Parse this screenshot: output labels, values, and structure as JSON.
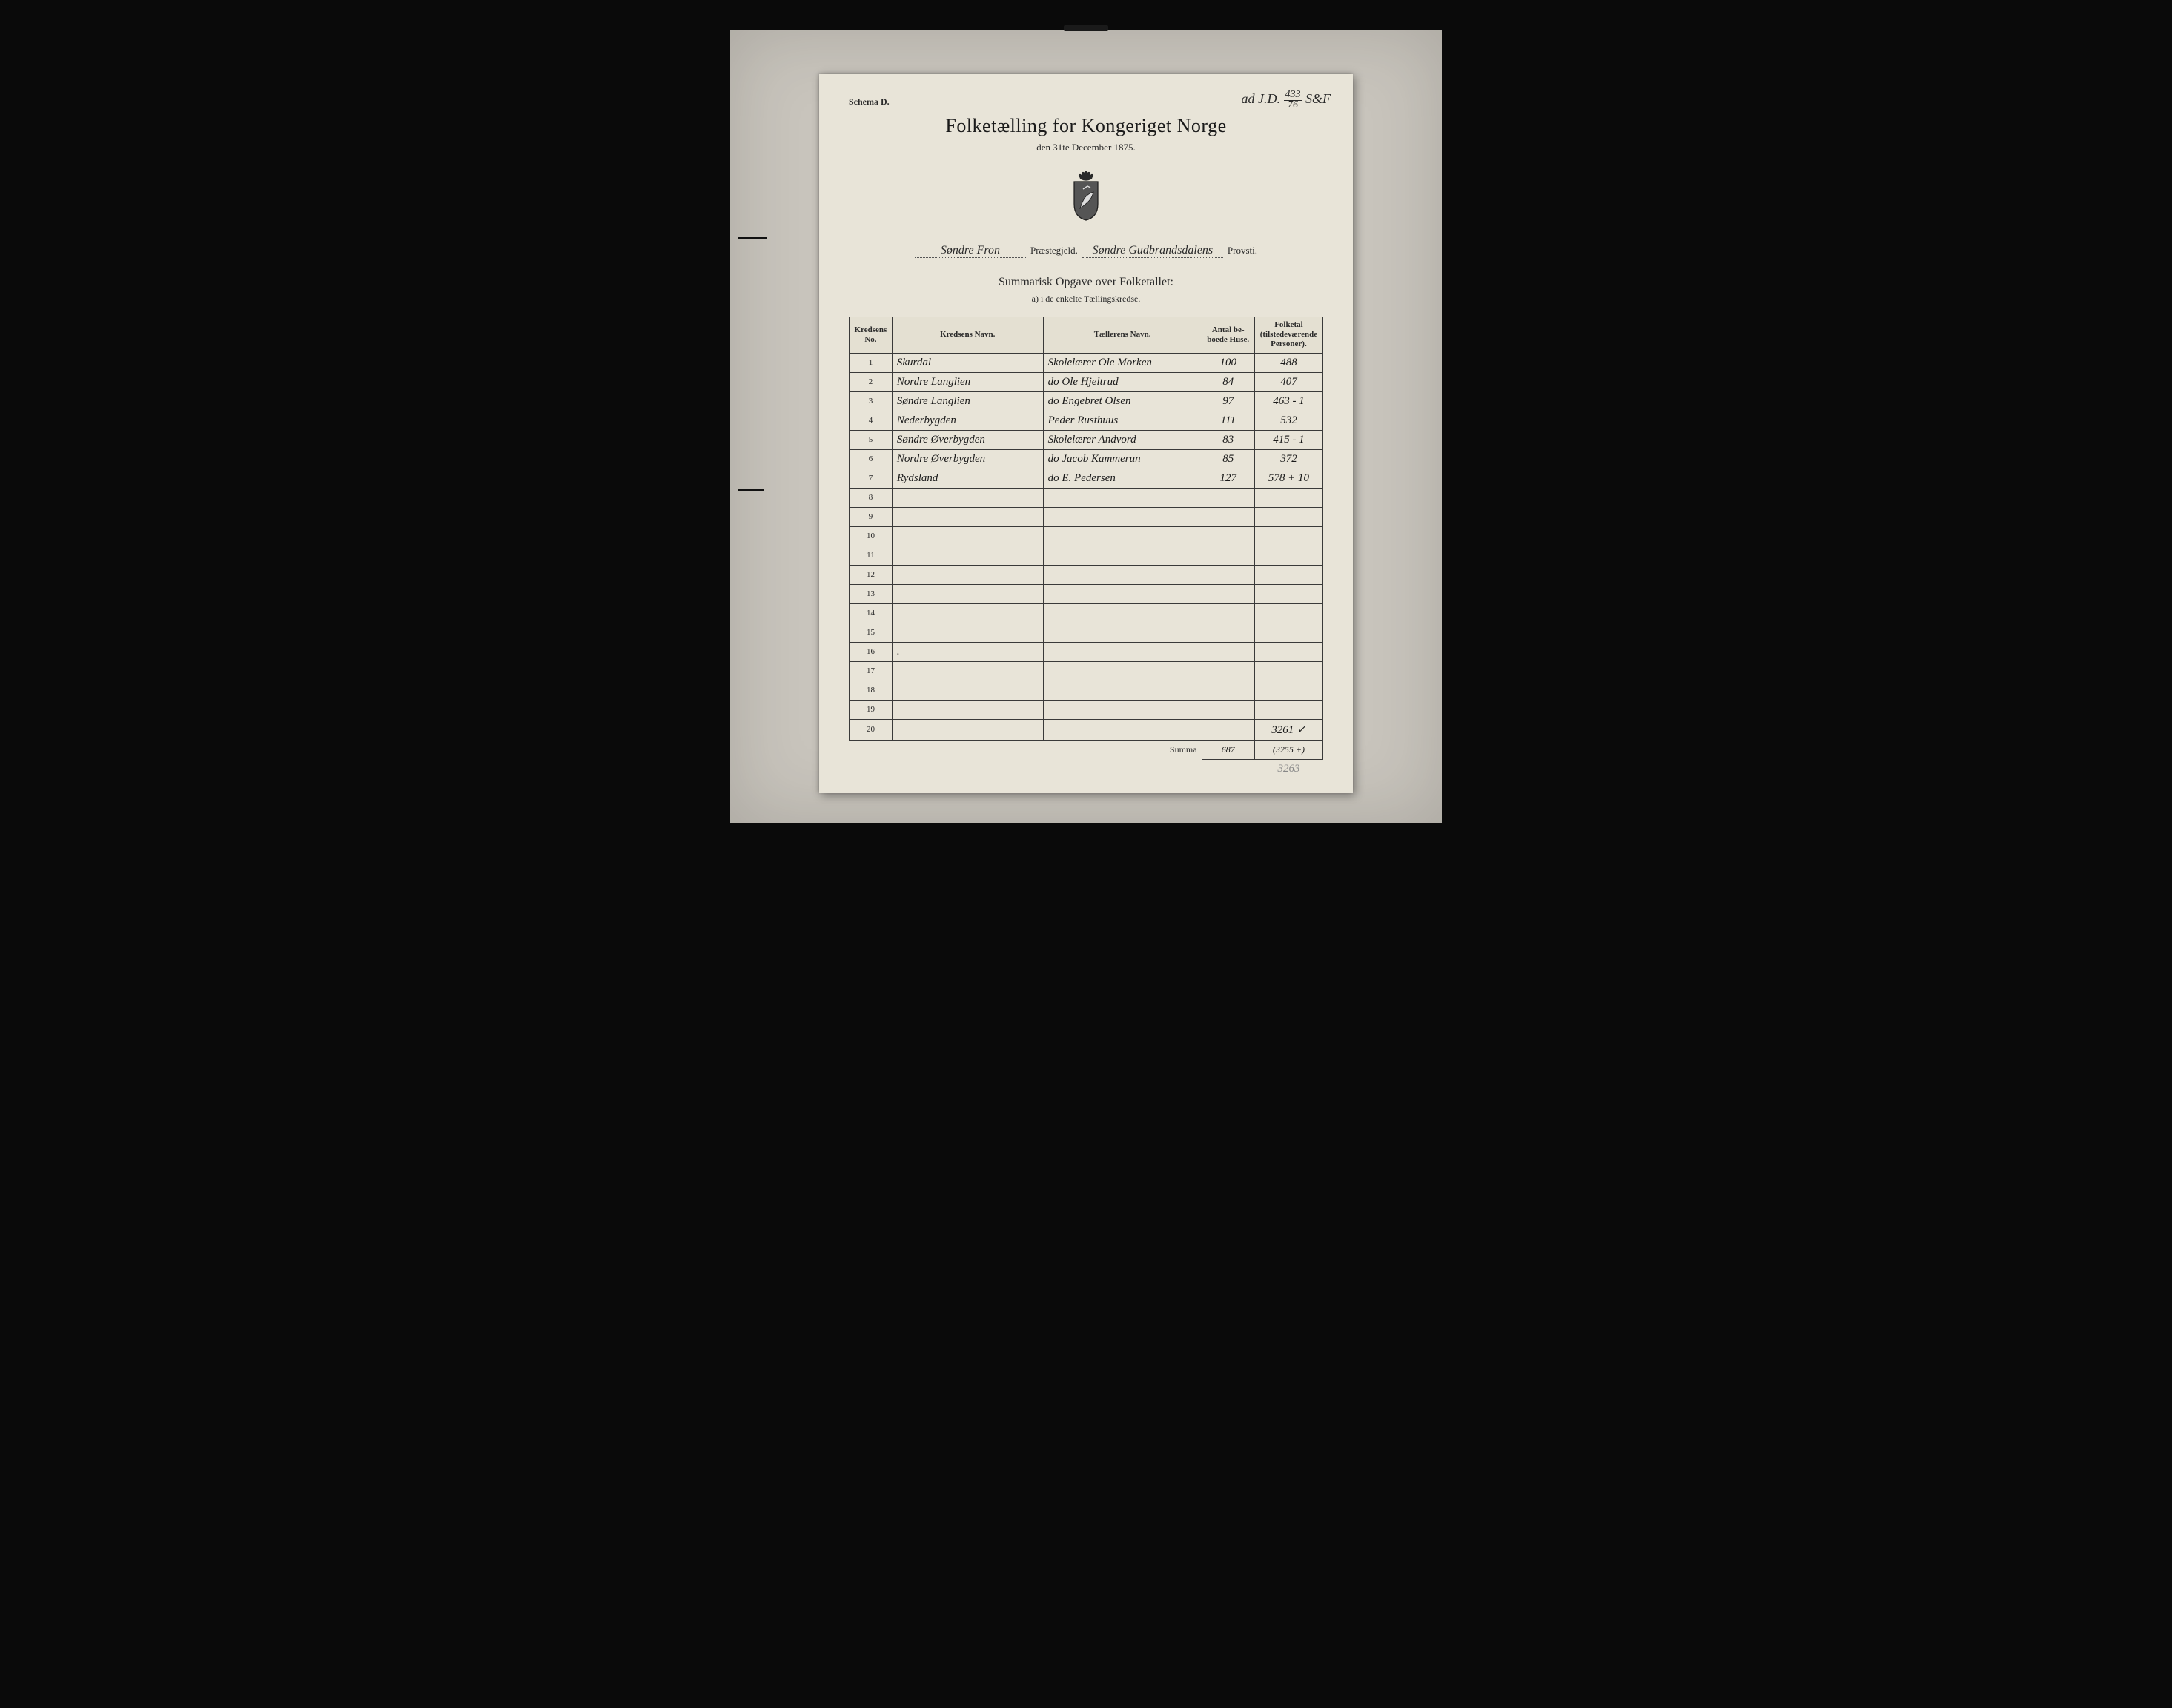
{
  "meta": {
    "schema_label": "Schema D.",
    "top_annotation_prefix": "ad J.D.",
    "top_annotation_num": "433",
    "top_annotation_den": "76",
    "top_annotation_suffix": "S&F"
  },
  "header": {
    "main_title": "Folketælling for Kongeriget Norge",
    "subtitle": "den 31te December 1875."
  },
  "locality": {
    "parish_value": "Søndre Fron",
    "parish_label": "Præstegjeld.",
    "deanery_value": "Søndre Gudbrandsdalens",
    "deanery_label": "Provsti."
  },
  "summary": {
    "title": "Summarisk Opgave over Folketallet:",
    "sub": "a) i de enkelte Tællingskredse."
  },
  "table": {
    "headers": {
      "num": "Kredsens\nNo.",
      "name": "Kredsens Navn.",
      "enumerator": "Tællerens Navn.",
      "houses": "Antal be-\nboede Huse.",
      "population": "Folketal\n(tilstedeværende\nPersoner)."
    },
    "rows": [
      {
        "no": "1",
        "name": "Skurdal",
        "enumerator": "Skolelærer Ole Morken",
        "houses": "100",
        "pop": "488"
      },
      {
        "no": "2",
        "name": "Nordre Langlien",
        "enumerator": "do   Ole Hjeltrud",
        "houses": "84",
        "pop": "407"
      },
      {
        "no": "3",
        "name": "Søndre Langlien",
        "enumerator": "do   Engebret Olsen",
        "houses": "97",
        "pop": "463 - 1"
      },
      {
        "no": "4",
        "name": "Nederbygden",
        "enumerator": "Peder Rusthuus",
        "houses": "111",
        "pop": "532"
      },
      {
        "no": "5",
        "name": "Søndre Øverbygden",
        "enumerator": "Skolelærer Andvord",
        "houses": "83",
        "pop": "415 - 1"
      },
      {
        "no": "6",
        "name": "Nordre Øverbygden",
        "enumerator": "do   Jacob Kammerun",
        "houses": "85",
        "pop": "372"
      },
      {
        "no": "7",
        "name": "Rydsland",
        "enumerator": "do   E. Pedersen",
        "houses": "127",
        "pop": "578 + 10"
      },
      {
        "no": "8",
        "name": "",
        "enumerator": "",
        "houses": "",
        "pop": ""
      },
      {
        "no": "9",
        "name": "",
        "enumerator": "",
        "houses": "",
        "pop": ""
      },
      {
        "no": "10",
        "name": "",
        "enumerator": "",
        "houses": "",
        "pop": ""
      },
      {
        "no": "11",
        "name": "",
        "enumerator": "",
        "houses": "",
        "pop": ""
      },
      {
        "no": "12",
        "name": "",
        "enumerator": "",
        "houses": "",
        "pop": ""
      },
      {
        "no": "13",
        "name": "",
        "enumerator": "",
        "houses": "",
        "pop": ""
      },
      {
        "no": "14",
        "name": "",
        "enumerator": "",
        "houses": "",
        "pop": ""
      },
      {
        "no": "15",
        "name": "",
        "enumerator": "",
        "houses": "",
        "pop": ""
      },
      {
        "no": "16",
        "name": ".",
        "enumerator": "",
        "houses": "",
        "pop": ""
      },
      {
        "no": "17",
        "name": "",
        "enumerator": "",
        "houses": "",
        "pop": ""
      },
      {
        "no": "18",
        "name": "",
        "enumerator": "",
        "houses": "",
        "pop": ""
      },
      {
        "no": "19",
        "name": "",
        "enumerator": "",
        "houses": "",
        "pop": ""
      },
      {
        "no": "20",
        "name": "",
        "enumerator": "",
        "houses": "",
        "pop": "3261 ✓"
      }
    ],
    "sum_label": "Summa",
    "sum_houses": "687",
    "sum_pop": "(3255 +)",
    "pencil_note": "3263"
  },
  "colors": {
    "page_bg": "#e8e4d8",
    "photo_bg": "#c8c4bc",
    "outer_bg": "#0a0a0a",
    "ink": "#2a2a2a",
    "border": "#3a3a3a"
  },
  "typography": {
    "title_fontsize_pt": 20,
    "body_fontsize_pt": 9,
    "handwriting_family": "cursive"
  }
}
